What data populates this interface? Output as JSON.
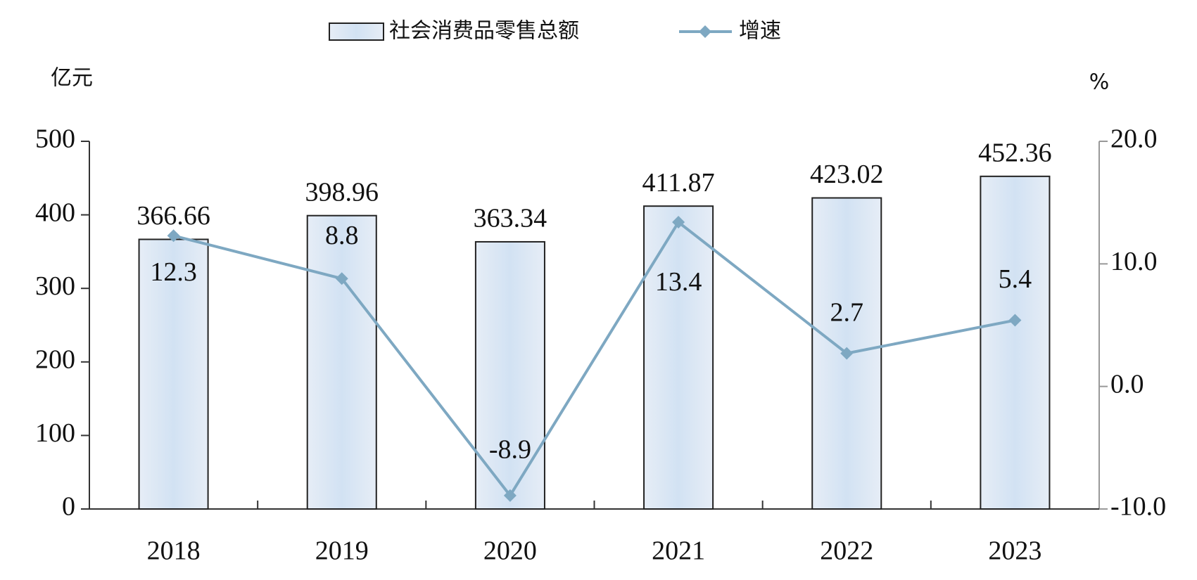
{
  "chart_data": {
    "type": "bar",
    "y_unit": "亿元",
    "y2_unit": "%",
    "categories": [
      "2018",
      "2019",
      "2020",
      "2021",
      "2022",
      "2023"
    ],
    "series": [
      {
        "name": "社会消费品零售总额",
        "type": "bar",
        "color": "#dce8f5",
        "values": [
          366.66,
          398.96,
          363.34,
          411.87,
          423.02,
          452.36
        ]
      },
      {
        "name": "增速",
        "type": "line",
        "axis": "y2",
        "color": "#7ea8c2",
        "values": [
          12.3,
          8.8,
          -8.9,
          13.4,
          2.7,
          5.4
        ]
      }
    ],
    "ylim": [
      0,
      500
    ],
    "yticks": [
      0,
      100,
      200,
      300,
      400,
      500
    ],
    "y2lim": [
      -10,
      20
    ],
    "y2ticks": [
      {
        "value": -10,
        "label": "-10.0"
      },
      {
        "value": 0,
        "label": "0.0"
      },
      {
        "value": 10,
        "label": "10.0"
      },
      {
        "value": 20,
        "label": "20.0"
      }
    ],
    "grid": false
  }
}
